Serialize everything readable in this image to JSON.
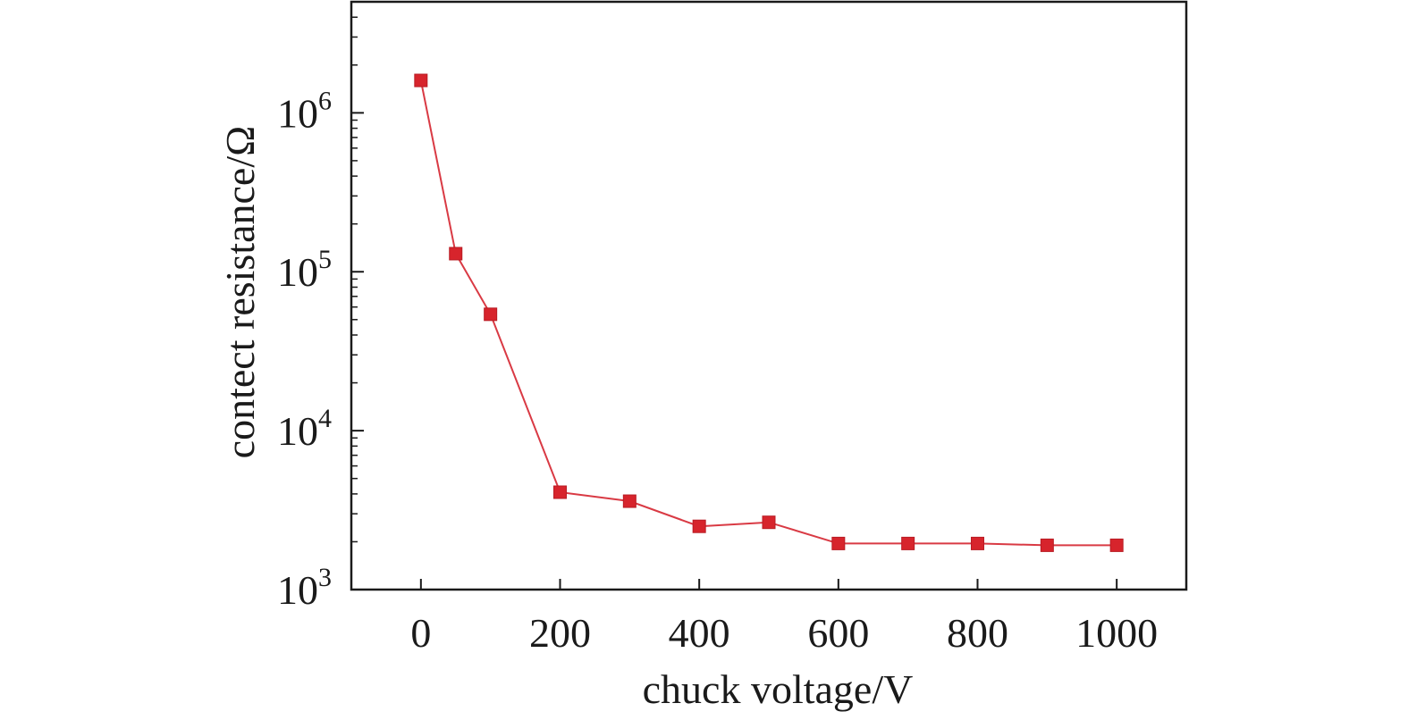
{
  "chart_data": {
    "type": "line",
    "title": "",
    "xlabel": "chuck voltage/V",
    "ylabel": "contect resistance/Ω",
    "xlim": [
      -100,
      1100
    ],
    "ylim": [
      1000,
      5000000
    ],
    "yscale": "log",
    "grid": false,
    "legend": "none",
    "x_ticks": [
      0,
      200,
      400,
      600,
      800,
      1000
    ],
    "x_tick_labels": [
      "0",
      "200",
      "400",
      "600",
      "800",
      "1000"
    ],
    "y_ticks": [
      {
        "value": 1000,
        "base": "10",
        "exp": "3"
      },
      {
        "value": 10000,
        "base": "10",
        "exp": "4"
      },
      {
        "value": 100000,
        "base": "10",
        "exp": "5"
      },
      {
        "value": 1000000,
        "base": "10",
        "exp": "6"
      }
    ],
    "series": [
      {
        "color": "#d7242c",
        "line_color": "#d93a44",
        "marker": "square",
        "x": [
          0,
          50,
          100,
          200,
          300,
          400,
          500,
          600,
          700,
          800,
          900,
          1000
        ],
        "y": [
          1600000,
          130000,
          54000,
          4100,
          3600,
          2500,
          2650,
          1950,
          1950,
          1950,
          1900,
          1900
        ]
      }
    ]
  }
}
